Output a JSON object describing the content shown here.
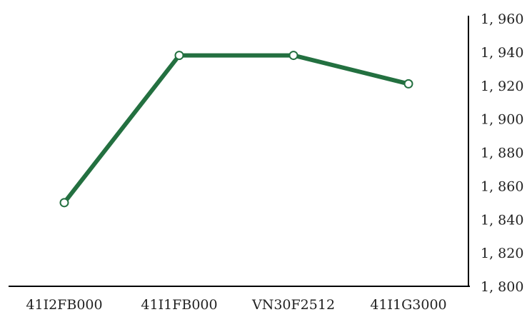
{
  "chart_data": {
    "type": "line",
    "title": "",
    "xlabel": "",
    "ylabel": "",
    "categories": [
      "41I2FB000",
      "41I1FB000",
      "VN30F2512",
      "41I1G3000"
    ],
    "series": [
      {
        "values": [
          1850,
          1938,
          1938,
          1921
        ],
        "color": "#237040"
      }
    ],
    "ylim": [
      1800,
      1960
    ],
    "y_ticks": [
      1800,
      1820,
      1840,
      1860,
      1880,
      1900,
      1920,
      1940,
      1960
    ],
    "y_tick_labels": [
      "1, 800",
      "1, 820",
      "1, 840",
      "1, 860",
      "1, 880",
      "1, 900",
      "1, 920",
      "1, 940",
      "1, 960"
    ],
    "y_axis_side": "right",
    "grid": false,
    "legend": "none",
    "markers": "hollow-circle"
  }
}
